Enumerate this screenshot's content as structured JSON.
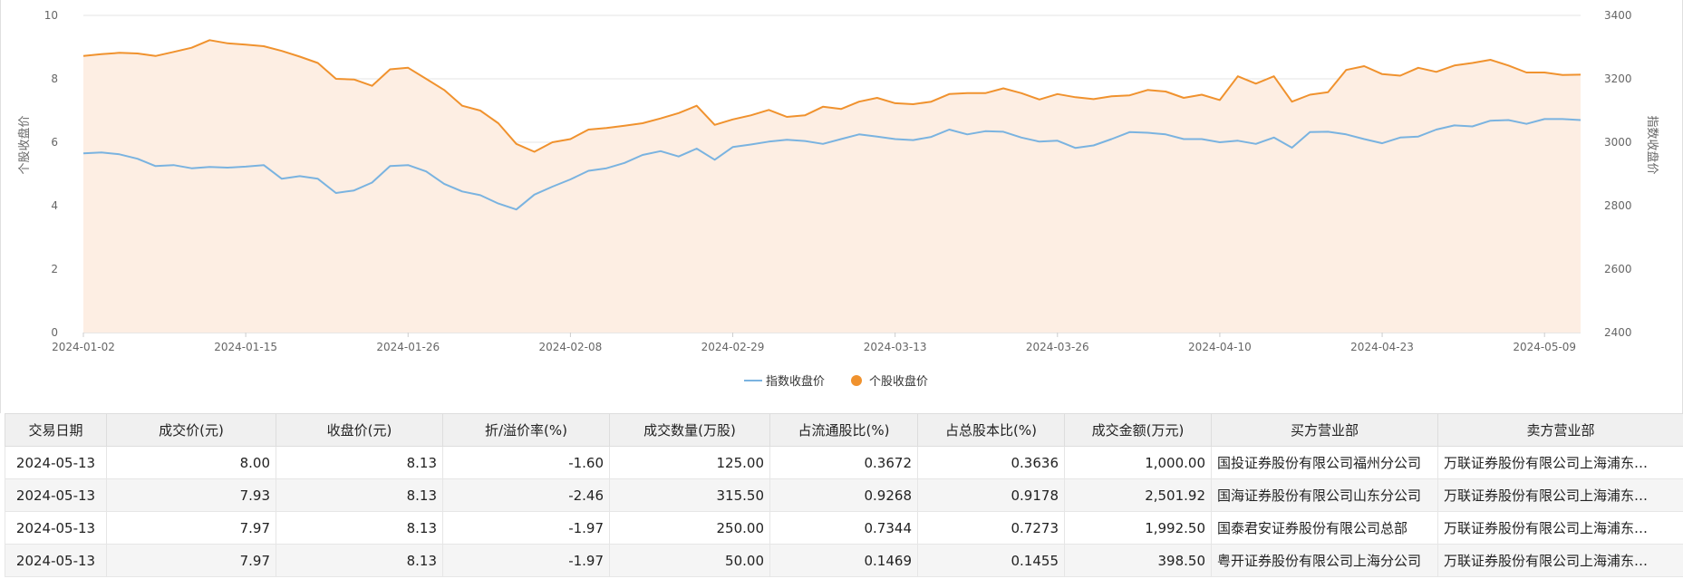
{
  "chart_data": {
    "type": "line",
    "left_axis": {
      "label": "个股收盘价",
      "ylim": [
        0,
        10
      ],
      "ticks": [
        "0",
        "2",
        "4",
        "6",
        "8",
        "10"
      ]
    },
    "right_axis": {
      "label": "指数收盘价",
      "ylim": [
        2400,
        3400
      ],
      "ticks": [
        "2400",
        "2600",
        "2800",
        "3000",
        "3200",
        "3400"
      ]
    },
    "x_ticks": [
      {
        "label": "2024-01-02",
        "index": 0
      },
      {
        "label": "2024-01-15",
        "index": 9
      },
      {
        "label": "2024-01-26",
        "index": 18
      },
      {
        "label": "2024-02-08",
        "index": 27
      },
      {
        "label": "2024-02-29",
        "index": 36
      },
      {
        "label": "2024-03-13",
        "index": 45
      },
      {
        "label": "2024-03-26",
        "index": 54
      },
      {
        "label": "2024-04-10",
        "index": 63
      },
      {
        "label": "2024-04-23",
        "index": 72
      },
      {
        "label": "2024-05-09",
        "index": 81
      }
    ],
    "grid": true,
    "legend_position": "bottom-center",
    "series": [
      {
        "name": "指数收盘价",
        "axis": "right",
        "color": "#7ab3e0",
        "values": [
          2965,
          2968,
          2962,
          2948,
          2925,
          2928,
          2918,
          2922,
          2920,
          2923,
          2928,
          2885,
          2893,
          2885,
          2840,
          2848,
          2873,
          2925,
          2928,
          2908,
          2869,
          2845,
          2833,
          2807,
          2788,
          2835,
          2860,
          2883,
          2910,
          2918,
          2935,
          2960,
          2972,
          2955,
          2980,
          2945,
          2985,
          2993,
          3002,
          3008,
          3004,
          2995,
          3010,
          3025,
          3018,
          3010,
          3007,
          3017,
          3040,
          3025,
          3035,
          3033,
          3015,
          3002,
          3005,
          2982,
          2990,
          3010,
          3032,
          3030,
          3025,
          3010,
          3010,
          3000,
          3005,
          2995,
          3015,
          2983,
          3032,
          3033,
          3025,
          3010,
          2997,
          3015,
          3018,
          3040,
          3053,
          3050,
          3068,
          3070,
          3058,
          3073,
          3073,
          3070
        ]
      },
      {
        "name": "个股收盘价",
        "axis": "left",
        "color": "#f0922e",
        "area_color": "#fdeee3",
        "values": [
          8.72,
          8.78,
          8.82,
          8.8,
          8.72,
          8.85,
          8.98,
          9.22,
          9.12,
          9.08,
          9.03,
          8.88,
          8.7,
          8.5,
          8.0,
          7.98,
          7.78,
          8.3,
          8.35,
          8.0,
          7.65,
          7.15,
          7.0,
          6.6,
          5.95,
          5.7,
          6.0,
          6.1,
          6.4,
          6.45,
          6.52,
          6.6,
          6.75,
          6.92,
          7.15,
          6.55,
          6.72,
          6.85,
          7.02,
          6.8,
          6.85,
          7.12,
          7.05,
          7.28,
          7.4,
          7.23,
          7.2,
          7.28,
          7.52,
          7.55,
          7.55,
          7.7,
          7.55,
          7.35,
          7.52,
          7.42,
          7.36,
          7.45,
          7.48,
          7.65,
          7.6,
          7.4,
          7.5,
          7.33,
          8.08,
          7.85,
          8.08,
          7.28,
          7.5,
          7.58,
          8.28,
          8.4,
          8.15,
          8.1,
          8.35,
          8.22,
          8.42,
          8.5,
          8.6,
          8.42,
          8.2,
          8.2,
          8.12,
          8.13
        ]
      }
    ]
  },
  "table": {
    "headers": [
      "交易日期",
      "成交价(元)",
      "收盘价(元)",
      "折/溢价率(%)",
      "成交数量(万股)",
      "占流通股比(%)",
      "占总股本比(%)",
      "成交金额(万元)",
      "买方营业部",
      "卖方营业部"
    ],
    "rows": [
      {
        "date": "2024-05-13",
        "price": "8.00",
        "close": "8.13",
        "premium": "-1.60",
        "volume": "125.00",
        "float_pct": "0.3672",
        "total_pct": "0.3636",
        "amount": "1,000.00",
        "buyer": "国投证券股份有限公司福州分公司",
        "seller": "万联证券股份有限公司上海浦东…"
      },
      {
        "date": "2024-05-13",
        "price": "7.93",
        "close": "8.13",
        "premium": "-2.46",
        "volume": "315.50",
        "float_pct": "0.9268",
        "total_pct": "0.9178",
        "amount": "2,501.92",
        "buyer": "国海证券股份有限公司山东分公司",
        "seller": "万联证券股份有限公司上海浦东…"
      },
      {
        "date": "2024-05-13",
        "price": "7.97",
        "close": "8.13",
        "premium": "-1.97",
        "volume": "250.00",
        "float_pct": "0.7344",
        "total_pct": "0.7273",
        "amount": "1,992.50",
        "buyer": "国泰君安证券股份有限公司总部",
        "seller": "万联证券股份有限公司上海浦东…"
      },
      {
        "date": "2024-05-13",
        "price": "7.97",
        "close": "8.13",
        "premium": "-1.97",
        "volume": "50.00",
        "float_pct": "0.1469",
        "total_pct": "0.1455",
        "amount": "398.50",
        "buyer": "粤开证券股份有限公司上海分公司",
        "seller": "万联证券股份有限公司上海浦东…"
      }
    ]
  }
}
